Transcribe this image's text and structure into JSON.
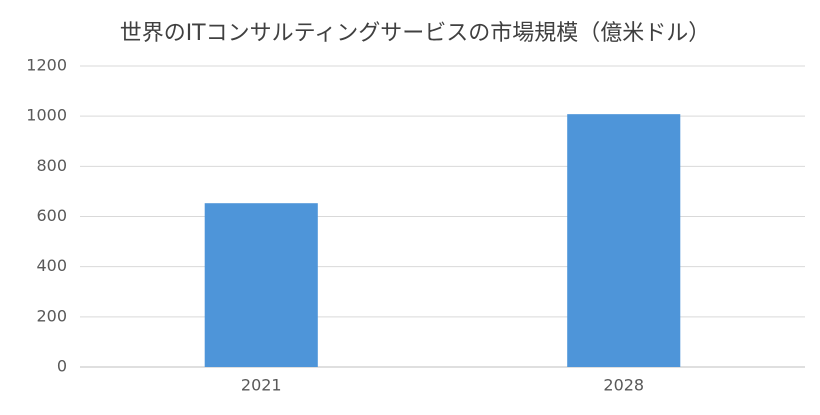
{
  "chart_data": {
    "type": "bar",
    "title": "世界のITコンサルティングサービスの市場規模（億米ドル）",
    "categories": [
      "2021",
      "2028"
    ],
    "values": [
      653,
      1008
    ],
    "color": "#4e95d9",
    "ylim": [
      0,
      1200
    ],
    "yticks": [
      0,
      200,
      400,
      600,
      800,
      1000,
      1200
    ],
    "grid": true
  }
}
